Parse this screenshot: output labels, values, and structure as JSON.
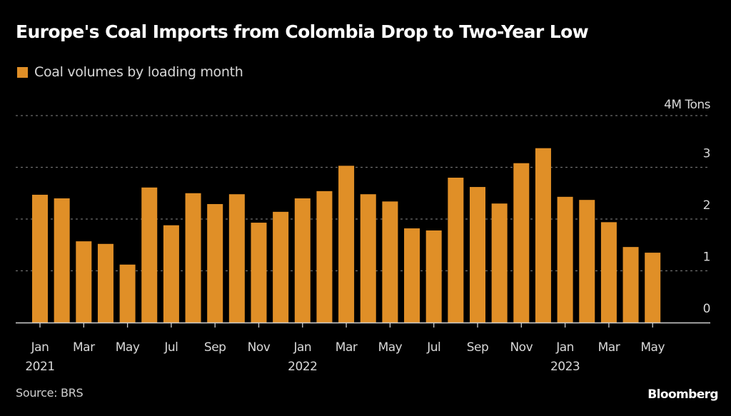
{
  "title": "Europe's Coal Imports from Colombia Drop to Two-Year Low",
  "source": "Source: BRS",
  "brand": "Bloomberg",
  "colors": {
    "bar": "#e08f27",
    "background": "#000000",
    "grid": "#6e6e6e",
    "axis": "#cfcfcf",
    "text": "#d8d8d8"
  },
  "chart_data": {
    "type": "bar",
    "title": "Europe's Coal Imports from Colombia Drop to Two-Year Low",
    "xlabel": "",
    "ylabel": "4M Tons",
    "unit_label": "4M Tons",
    "ylim": [
      0,
      4
    ],
    "yticks": [
      0,
      1,
      2,
      3,
      4
    ],
    "ytick_labels": [
      "0",
      "1",
      "2",
      "3",
      "4M Tons"
    ],
    "grid": true,
    "legend": {
      "position": "top-left",
      "entries": [
        "Coal volumes by loading month"
      ]
    },
    "categories": [
      "2021-01",
      "2021-02",
      "2021-03",
      "2021-04",
      "2021-05",
      "2021-06",
      "2021-07",
      "2021-08",
      "2021-09",
      "2021-10",
      "2021-11",
      "2021-12",
      "2022-01",
      "2022-02",
      "2022-03",
      "2022-04",
      "2022-05",
      "2022-06",
      "2022-07",
      "2022-08",
      "2022-09",
      "2022-10",
      "2022-11",
      "2022-12",
      "2023-01",
      "2023-02",
      "2023-03",
      "2023-04",
      "2023-05"
    ],
    "xticks": [
      {
        "index": 0,
        "label": "Jan",
        "year": "2021"
      },
      {
        "index": 2,
        "label": "Mar",
        "year": ""
      },
      {
        "index": 4,
        "label": "May",
        "year": ""
      },
      {
        "index": 6,
        "label": "Jul",
        "year": ""
      },
      {
        "index": 8,
        "label": "Sep",
        "year": ""
      },
      {
        "index": 10,
        "label": "Nov",
        "year": ""
      },
      {
        "index": 12,
        "label": "Jan",
        "year": "2022"
      },
      {
        "index": 14,
        "label": "Mar",
        "year": ""
      },
      {
        "index": 16,
        "label": "May",
        "year": ""
      },
      {
        "index": 18,
        "label": "Jul",
        "year": ""
      },
      {
        "index": 20,
        "label": "Sep",
        "year": ""
      },
      {
        "index": 22,
        "label": "Nov",
        "year": ""
      },
      {
        "index": 24,
        "label": "Jan",
        "year": "2023"
      },
      {
        "index": 26,
        "label": "Mar",
        "year": ""
      },
      {
        "index": 28,
        "label": "May",
        "year": ""
      }
    ],
    "series": [
      {
        "name": "Coal volumes by loading month",
        "values": [
          2.47,
          2.4,
          1.57,
          1.52,
          1.12,
          2.61,
          1.88,
          2.5,
          2.29,
          2.48,
          1.93,
          2.14,
          2.4,
          2.54,
          3.03,
          2.48,
          2.34,
          1.82,
          1.78,
          2.8,
          2.62,
          2.3,
          3.08,
          3.37,
          2.43,
          2.37,
          1.94,
          1.46,
          1.35
        ]
      }
    ]
  }
}
